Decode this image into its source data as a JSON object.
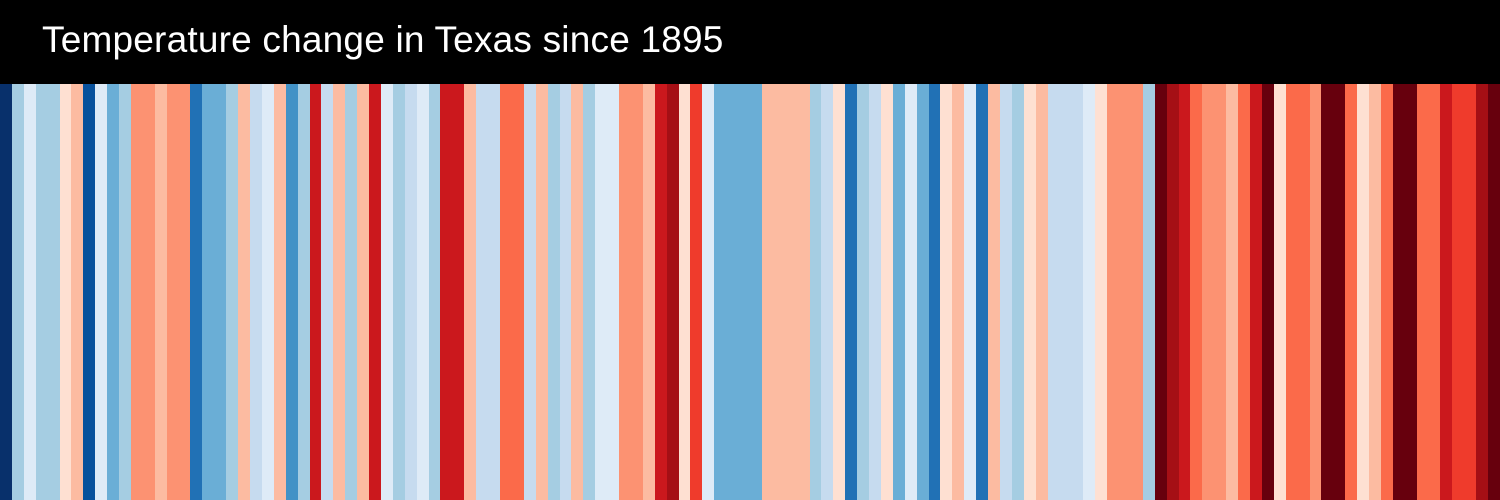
{
  "title": "Temperature change in Texas since 1895",
  "colors": {
    "background": "#000000",
    "title_text": "#ffffff"
  },
  "chart_data": {
    "type": "heatmap",
    "title": "Temperature change in Texas since 1895",
    "x_start_year": 1895,
    "x_end_year": 2020,
    "color_scale": "RdBu (reversed): blue = cooler, red = warmer",
    "stripe_colors": [
      "#08306b",
      "#a5cde2",
      "#deebf7",
      "#a5cde2",
      "#a5cde2",
      "#fee0d2",
      "#fcbba1",
      "#08519c",
      "#deebf7",
      "#6aaed6",
      "#a5cde2",
      "#fc9272",
      "#fc9272",
      "#fcbba1",
      "#fc9272",
      "#fc9272",
      "#2171b5",
      "#6aaed6",
      "#6aaed6",
      "#a5cde2",
      "#fcbba1",
      "#c6dbef",
      "#deebf7",
      "#fcbba1",
      "#4292c6",
      "#a5cde2",
      "#cb181d",
      "#c6dbef",
      "#fcbba1",
      "#a5cde2",
      "#fcbba1",
      "#cb181d",
      "#deebf7",
      "#a5cde2",
      "#c6dbef",
      "#deebf7",
      "#a5cde2",
      "#cb181d",
      "#cb181d",
      "#fcbba1",
      "#c6dbef",
      "#c6dbef",
      "#fb6a4a",
      "#fb6a4a",
      "#c6dbef",
      "#fcbba1",
      "#a5cde2",
      "#c6dbef",
      "#fcbba1",
      "#a5cde2",
      "#deebf7",
      "#deebf7",
      "#fc9272",
      "#fc9272",
      "#fcbba1",
      "#cb181d",
      "#a50f15",
      "#fee0d2",
      "#ef3b2c",
      "#deebf7",
      "#6aaed6",
      "#6aaed6",
      "#6aaed6",
      "#6aaed6",
      "#fcbba1",
      "#fcbba1",
      "#fcbba1",
      "#fcbba1",
      "#a5cde2",
      "#c6dbef",
      "#fee0d2",
      "#2171b5",
      "#a5cde2",
      "#c6dbef",
      "#fee0d2",
      "#6aaed6",
      "#deebf7",
      "#6aaed6",
      "#2171b5",
      "#fee0d2",
      "#fcbba1",
      "#deebf7",
      "#2171b5",
      "#fcbba1",
      "#c6dbef",
      "#a5cde2",
      "#fee0d2",
      "#fcbba1",
      "#c6dbef",
      "#c6dbef",
      "#c6dbef",
      "#deebf7",
      "#fee0d2",
      "#fc9272",
      "#fc9272",
      "#fc9272",
      "#a5cde2",
      "#67000d",
      "#a50f15",
      "#cb181d",
      "#fb6a4a",
      "#fc9272",
      "#fc9272",
      "#fcbba1",
      "#fb6a4a",
      "#cb181d",
      "#67000d",
      "#fee0d2",
      "#fb6a4a",
      "#fb6a4a",
      "#fc9272",
      "#67000d",
      "#67000d",
      "#fb6a4a",
      "#fee0d2",
      "#fcbba1",
      "#fb6a4a",
      "#67000d",
      "#67000d",
      "#fb6a4a",
      "#fb6a4a",
      "#cb181d",
      "#ef3b2c",
      "#ef3b2c",
      "#a50f15",
      "#67000d"
    ]
  }
}
